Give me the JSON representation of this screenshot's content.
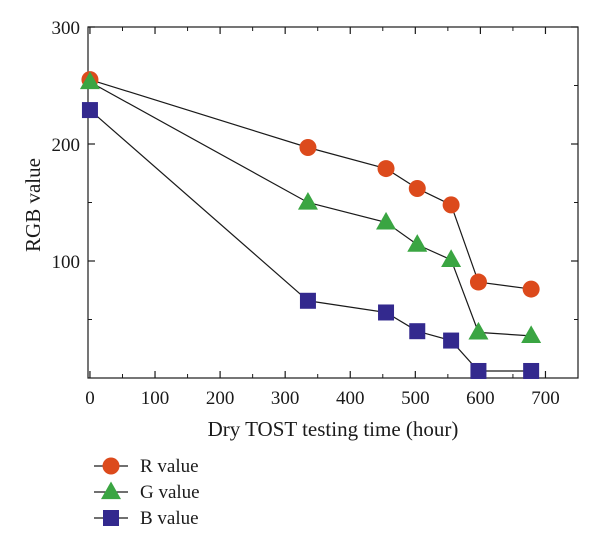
{
  "chart_data": {
    "type": "line",
    "xlabel": "Dry TOST testing time (hour)",
    "ylabel": "RGB value",
    "xlim": [
      -3,
      750
    ],
    "ylim": [
      0,
      300
    ],
    "x_ticks": [
      0,
      100,
      200,
      300,
      400,
      500,
      600,
      700
    ],
    "y_ticks": [
      100,
      200,
      300
    ],
    "x_tick_labels": [
      "0",
      "100",
      "200",
      "300",
      "400",
      "500",
      "600",
      "700"
    ],
    "y_tick_labels": [
      "100",
      "200",
      "300"
    ],
    "grid": false,
    "legend_position": "bottom-left",
    "series": [
      {
        "name": "R value",
        "marker": "circle",
        "color": "#dc4a1c",
        "x": [
          0,
          335,
          455,
          503,
          555,
          597,
          678
        ],
        "y": [
          255,
          197,
          179,
          162,
          148,
          82,
          76
        ]
      },
      {
        "name": "G value",
        "marker": "triangle",
        "color": "#3aa542",
        "x": [
          0,
          335,
          455,
          503,
          555,
          597,
          678
        ],
        "y": [
          253,
          150,
          133,
          114,
          101,
          39,
          36
        ]
      },
      {
        "name": "B value",
        "marker": "square",
        "color": "#33298e",
        "x": [
          0,
          335,
          455,
          503,
          555,
          597,
          678
        ],
        "y": [
          229,
          66,
          56,
          40,
          32,
          6,
          6
        ]
      }
    ]
  }
}
